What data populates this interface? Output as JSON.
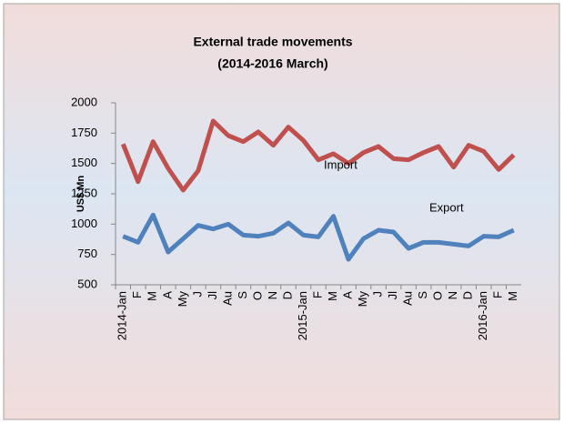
{
  "chart_data": {
    "type": "line",
    "title": "External trade movements",
    "subtitle": "(2014-2016 March)",
    "y_label": "US$ Mn",
    "categories": [
      "2014-Jan",
      "F",
      "M",
      "A",
      "My",
      "J",
      "Jl",
      "Au",
      "S",
      "O",
      "N",
      "D",
      "2015-Jan",
      "F",
      "M",
      "A",
      "My",
      "J",
      "Jl",
      "Au",
      "S",
      "O",
      "N",
      "D",
      "2016-Jan",
      "F",
      "M"
    ],
    "series": [
      {
        "name": "Import",
        "color": "#c0504d",
        "values": [
          1660,
          1350,
          1680,
          1460,
          1280,
          1440,
          1850,
          1730,
          1680,
          1760,
          1650,
          1800,
          1690,
          1530,
          1580,
          1500,
          1590,
          1640,
          1540,
          1530,
          1590,
          1640,
          1470,
          1650,
          1600,
          1450,
          1570
        ]
      },
      {
        "name": "Export",
        "color": "#4f81bd",
        "values": [
          900,
          850,
          1075,
          770,
          880,
          990,
          960,
          1000,
          910,
          900,
          925,
          1010,
          910,
          895,
          1065,
          710,
          880,
          950,
          935,
          800,
          850,
          850,
          835,
          820,
          900,
          895,
          950
        ]
      }
    ],
    "ylim": [
      500,
      2000
    ],
    "yticks": [
      500,
      750,
      1000,
      1250,
      1500,
      1750,
      2000
    ],
    "grid": false
  }
}
